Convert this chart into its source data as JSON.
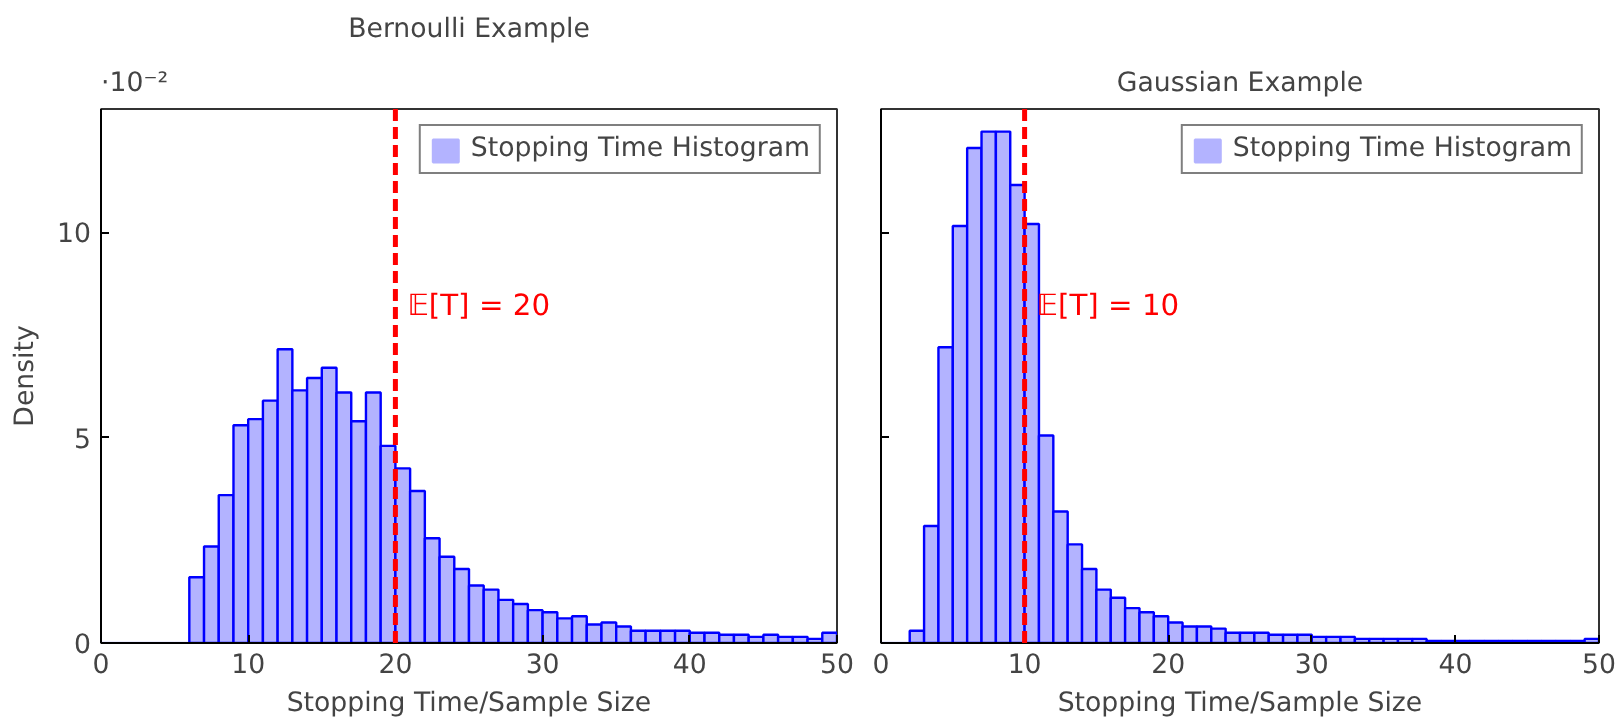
{
  "chart_data": [
    {
      "type": "histogram",
      "title": "Bernoulli Example",
      "xlabel": "Stopping Time/Sample Size",
      "ylabel": "Density",
      "annotations": [
        "·10⁻²"
      ],
      "bins": [
        0,
        1,
        2,
        3,
        4,
        5,
        6,
        7,
        8,
        9,
        10,
        11,
        12,
        13,
        14,
        15,
        16,
        17,
        18,
        19,
        20,
        21,
        22,
        23,
        24,
        25,
        26,
        27,
        28,
        29,
        30,
        31,
        32,
        33,
        34,
        35,
        36,
        37,
        38,
        39,
        40,
        41,
        42,
        43,
        44,
        45,
        46,
        47,
        48,
        49,
        50
      ],
      "series": [
        {
          "name": "Stopping Time Histogram",
          "color": "#b3b3ff",
          "values": [
            0,
            0,
            0,
            0,
            0,
            0,
            1.6,
            2.35,
            3.6,
            5.3,
            5.45,
            5.9,
            7.15,
            6.15,
            6.45,
            6.7,
            6.1,
            5.4,
            6.1,
            4.8,
            4.25,
            3.7,
            2.55,
            2.1,
            1.8,
            1.4,
            1.3,
            1.05,
            0.95,
            0.8,
            0.75,
            0.6,
            0.65,
            0.45,
            0.5,
            0.4,
            0.3,
            0.3,
            0.3,
            0.3,
            0.25,
            0.25,
            0.2,
            0.2,
            0.15,
            0.2,
            0.15,
            0.15,
            0.1,
            0.25
          ]
        }
      ],
      "xlim": [
        0,
        50
      ],
      "xticks": [
        0,
        10,
        20,
        30,
        40,
        50
      ],
      "ylim": [
        0,
        13
      ],
      "yticks": [
        0,
        5,
        10
      ],
      "ref_lines": [
        {
          "axis": "x",
          "value": 20,
          "label": "𝔼[T] = 20",
          "color": "#ff0000",
          "line_style": "dashed"
        }
      ],
      "legend": "top right"
    },
    {
      "type": "histogram",
      "title": "Gaussian Example",
      "xlabel": "Stopping Time/Sample Size",
      "bins": [
        0,
        1,
        2,
        3,
        4,
        5,
        6,
        7,
        8,
        9,
        10,
        11,
        12,
        13,
        14,
        15,
        16,
        17,
        18,
        19,
        20,
        21,
        22,
        23,
        24,
        25,
        26,
        27,
        28,
        29,
        30,
        31,
        32,
        33,
        34,
        35,
        36,
        37,
        38,
        39,
        40,
        41,
        42,
        43,
        44,
        45,
        46,
        47,
        48,
        49,
        50
      ],
      "series": [
        {
          "name": "Stopping Time Histogram",
          "color": "#b3b3ff",
          "values": [
            0,
            0,
            0.3,
            2.85,
            7.2,
            10.15,
            12.05,
            12.45,
            12.45,
            11.15,
            10.2,
            5.05,
            3.2,
            2.4,
            1.8,
            1.3,
            1.1,
            0.85,
            0.75,
            0.65,
            0.5,
            0.4,
            0.4,
            0.35,
            0.25,
            0.25,
            0.25,
            0.2,
            0.2,
            0.2,
            0.15,
            0.15,
            0.15,
            0.1,
            0.1,
            0.1,
            0.1,
            0.1,
            0.05,
            0.05,
            0.05,
            0.05,
            0.05,
            0.05,
            0.05,
            0.05,
            0.05,
            0.05,
            0.05,
            0.1
          ]
        }
      ],
      "xlim": [
        0,
        50
      ],
      "xticks": [
        0,
        10,
        20,
        30,
        40,
        50
      ],
      "ylim": [
        0,
        13
      ],
      "yticks": [
        0,
        5,
        10
      ],
      "ref_lines": [
        {
          "axis": "x",
          "value": 10,
          "label": "𝔼[T] = 10",
          "color": "#ff0000",
          "line_style": "dashed"
        }
      ],
      "legend": "top right",
      "tick_labels": "x"
    }
  ]
}
